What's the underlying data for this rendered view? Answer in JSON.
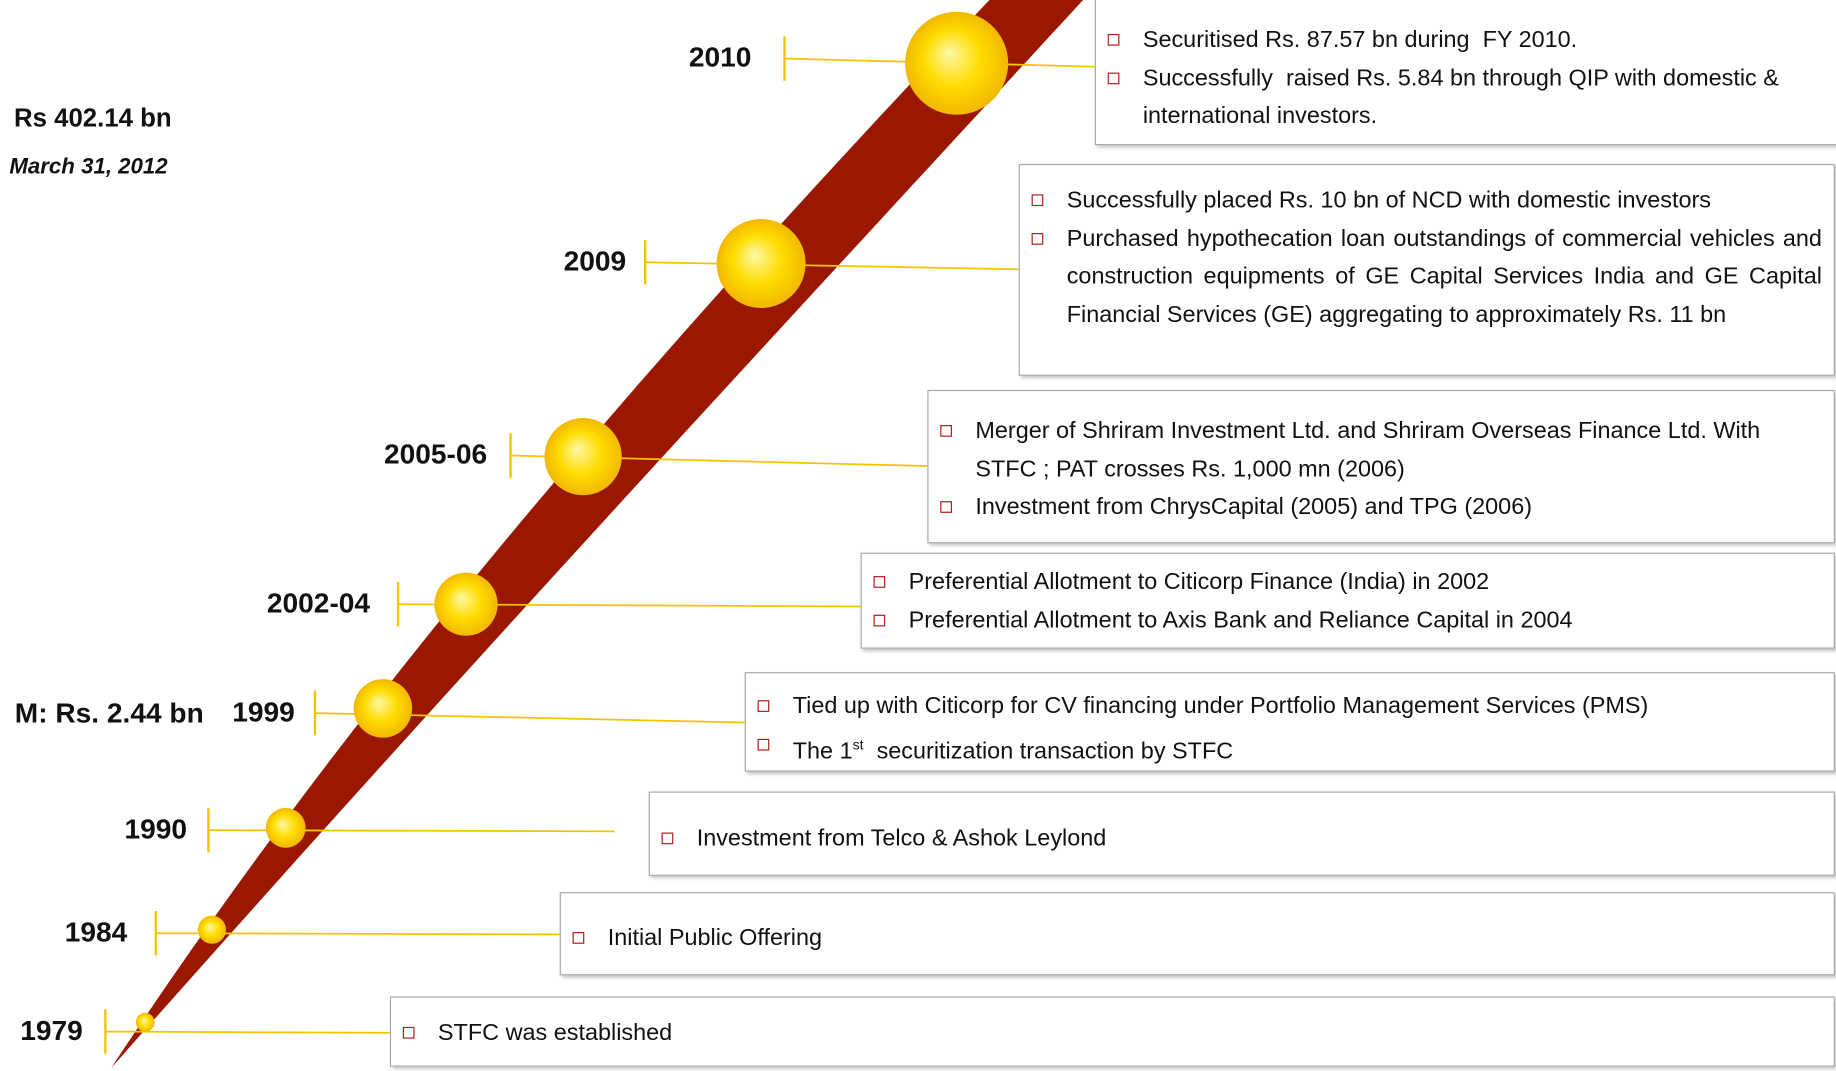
{
  "notes": {
    "total": "Rs 402.14 bn",
    "date": "March 31, 2012",
    "aum": "M: Rs. 2.44 bn"
  },
  "milestones": [
    {
      "year": "2010",
      "points": [
        "Securitised Rs. 87.57 bn during  FY 2010.",
        "Successfully  raised Rs. 5.84 bn through QIP with domestic & international investors."
      ]
    },
    {
      "year": "2009",
      "points": [
        "Successfully placed Rs. 10 bn of NCD with domestic investors",
        "Purchased hypothecation loan outstandings of commercial vehicles and construction equipments of GE Capital Services India and GE Capital Financial Services (GE) aggregating to approximately Rs. 11 bn"
      ]
    },
    {
      "year": "2005-06",
      "points": [
        "Merger of Shriram Investment Ltd. and Shriram Overseas Finance Ltd. With STFC ; PAT crosses Rs. 1,000 mn (2006)",
        "Investment from ChrysCapital (2005) and TPG (2006)"
      ]
    },
    {
      "year": "2002-04",
      "points": [
        "Preferential Allotment to Citicorp Finance (India) in 2002",
        "Preferential Allotment to Axis Bank and Reliance Capital in 2004"
      ]
    },
    {
      "year": "1999",
      "points": [
        "Tied up with Citicorp for CV financing under Portfolio Management Services (PMS)",
        {
          "text": "The 1",
          "sup": "st",
          "rest": "  securitization transaction by STFC"
        }
      ]
    },
    {
      "year": "1990",
      "points": [
        "Investment from Telco & Ashok Leylond"
      ]
    },
    {
      "year": "1984",
      "points": [
        "Initial Public Offering"
      ]
    },
    {
      "year": "1979",
      "points": [
        "STFC was established"
      ]
    }
  ]
}
